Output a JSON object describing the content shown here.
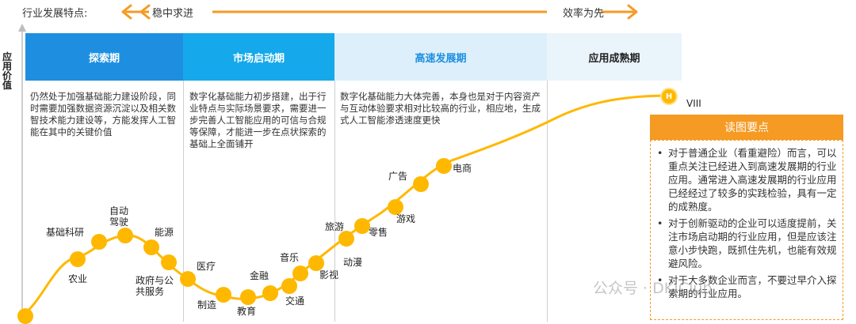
{
  "topbar": {
    "label": "行业发展特点:",
    "left_text": "稳中求进",
    "right_text": "效率为先",
    "arrow_color": "#F59A23"
  },
  "y_axis_label": "应用价值",
  "phases": [
    {
      "title": "探索期",
      "bg": "#1E8FE0",
      "color": "#ffffff",
      "desc": "仍然处于加强基础能力建设阶段，同时需要加强数据资源沉淀以及相关数智技术能力建设等，方能发挥人工智能在其中的关键价值"
    },
    {
      "title": "市场启动期",
      "bg": "#15A8EA",
      "color": "#ffffff",
      "desc": "数字化基础能力初步搭建，出于行业特点与实际场景要求，需要进一步完善人工智能应用的可信与合规等保障，才能进一步在点状探索的基础上全面铺开"
    },
    {
      "title": "高速发展期",
      "bg": "#DCEFFB",
      "color": "#1E8FE0",
      "desc": "数字化基础能力大体完善，本身也是对于内容资产与互动体验要求相对比较高的行业，相应地，生成式人工智能渗透速度更快"
    },
    {
      "title": "应用成熟期",
      "bg": "#EAF4FB",
      "color": "#222222",
      "desc": ""
    }
  ],
  "h_marker": "H",
  "viii_label": "VIII",
  "industries": [
    "基础科研",
    "农业",
    "自动驾驶",
    "能源",
    "政府与公共服务",
    "医疗",
    "制造",
    "教育",
    "金融",
    "交通",
    "音乐",
    "影视",
    "旅游",
    "动漫",
    "零售",
    "游戏",
    "广告",
    "电商"
  ],
  "reading_points": {
    "title": "读图要点",
    "title_bg": "#F59A23",
    "items": [
      "对于普通企业（看重避险）而言，可以重点关注已经进入到高速发展期的行业应用。通常进入高速发展期的行业应用已经经过了较多的实践检验，具有一定的成熟度。",
      "对于创新驱动的企业可以适度提前，关注市场启动期的行业应用，但是应该注意小步快跑，既抓住先机，也能有效规避风险。",
      "对于大多数企业而言，不要过早介入探索期的行业应用。"
    ]
  },
  "watermark": "公众号 · DKIClub",
  "colors": {
    "dot": "#FFB800",
    "curve": "#FFB800",
    "accent": "#F59A23"
  }
}
